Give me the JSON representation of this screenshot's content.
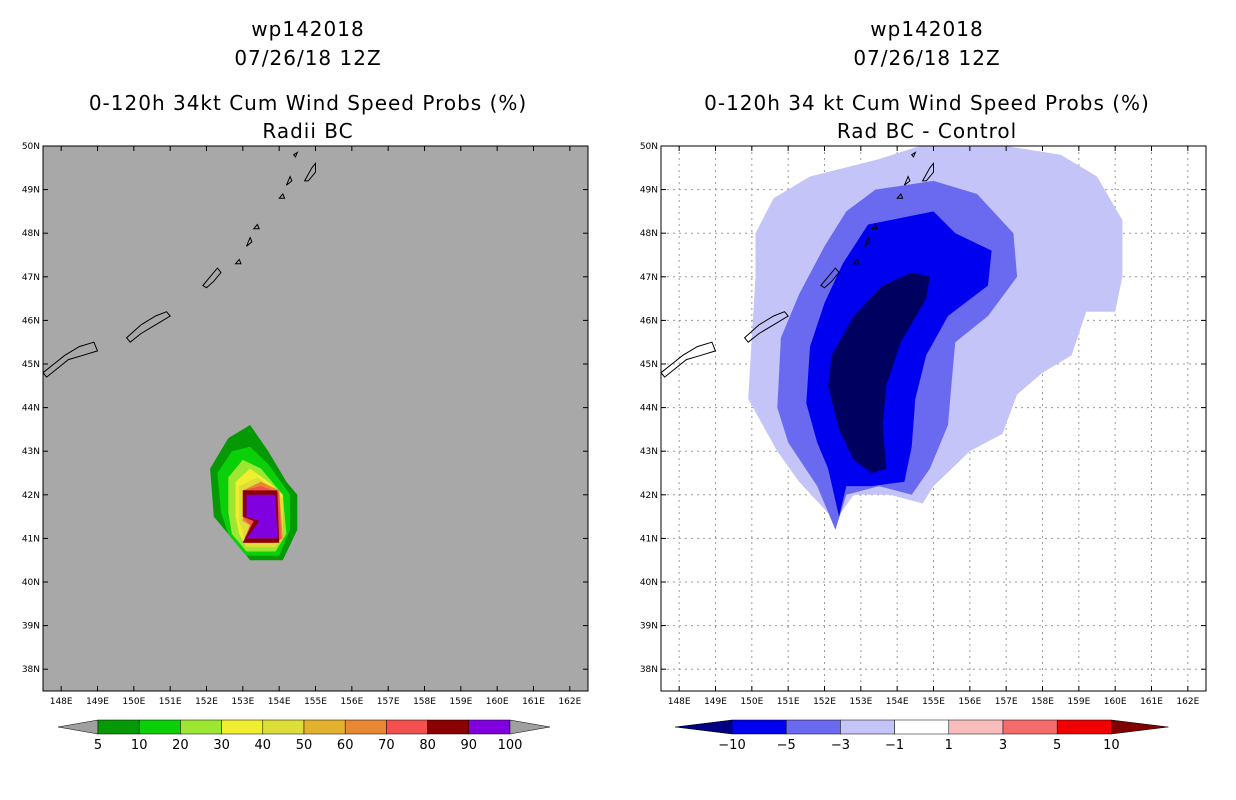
{
  "chart_data": [
    {
      "type": "contour-map",
      "title": [
        "wp142018",
        "07/26/18 12Z",
        "0-120h 34kt Cum Wind Speed Probs (%)",
        "Radii BC"
      ],
      "x_ticks": [
        "148E",
        "149E",
        "150E",
        "151E",
        "152E",
        "153E",
        "154E",
        "155E",
        "156E",
        "157E",
        "158E",
        "159E",
        "160E",
        "161E",
        "162E"
      ],
      "y_ticks": [
        "50N",
        "49N",
        "48N",
        "47N",
        "46N",
        "45N",
        "44N",
        "43N",
        "42N",
        "41N",
        "40N",
        "39N",
        "38N"
      ],
      "xlim": [
        147.5,
        162.5
      ],
      "ylim": [
        37.5,
        50.0
      ],
      "background": "#a8a8a8",
      "legend": {
        "labels": [
          "5",
          "10",
          "20",
          "30",
          "40",
          "50",
          "60",
          "70",
          "80",
          "90",
          "100"
        ],
        "colors": [
          "#059905",
          "#0ad00a",
          "#9de631",
          "#efef30",
          "#dede38",
          "#e2b22c",
          "#e98734",
          "#f35050",
          "#8b0000",
          "#8000e0"
        ],
        "end_color": "#a0a0a0"
      },
      "contours": [
        {
          "level": 5,
          "color": "#059905",
          "points": [
            [
              152.2,
              41.5
            ],
            [
              152.1,
              42.6
            ],
            [
              152.6,
              43.3
            ],
            [
              153.2,
              43.6
            ],
            [
              153.7,
              43.0
            ],
            [
              154.2,
              42.3
            ],
            [
              154.5,
              42.0
            ],
            [
              154.5,
              41.2
            ],
            [
              154.1,
              40.5
            ],
            [
              153.2,
              40.5
            ],
            [
              152.5,
              41.2
            ]
          ]
        },
        {
          "level": 10,
          "color": "#0ad00a",
          "points": [
            [
              152.4,
              41.6
            ],
            [
              152.3,
              42.5
            ],
            [
              152.7,
              43.0
            ],
            [
              153.2,
              43.1
            ],
            [
              153.7,
              42.7
            ],
            [
              154.3,
              42.0
            ],
            [
              154.3,
              41.2
            ],
            [
              154.0,
              40.6
            ],
            [
              153.1,
              40.6
            ],
            [
              152.6,
              41.1
            ]
          ]
        },
        {
          "level": 20,
          "color": "#9de631",
          "points": [
            [
              152.6,
              41.6
            ],
            [
              152.6,
              42.4
            ],
            [
              153.0,
              42.8
            ],
            [
              153.5,
              42.6
            ],
            [
              154.1,
              42.0
            ],
            [
              154.2,
              41.1
            ],
            [
              153.9,
              40.7
            ],
            [
              153.1,
              40.7
            ],
            [
              152.7,
              41.1
            ]
          ]
        },
        {
          "level": 30,
          "color": "#efef30",
          "points": [
            [
              152.8,
              41.5
            ],
            [
              152.8,
              42.3
            ],
            [
              153.2,
              42.6
            ],
            [
              153.7,
              42.3
            ],
            [
              154.1,
              42.0
            ],
            [
              154.1,
              41.1
            ],
            [
              153.8,
              40.8
            ],
            [
              153.1,
              40.8
            ],
            [
              152.9,
              41.1
            ]
          ]
        },
        {
          "level": 40,
          "color": "#dede38",
          "points": [
            [
              152.9,
              41.4
            ],
            [
              152.9,
              42.2
            ],
            [
              153.4,
              42.4
            ],
            [
              153.9,
              42.1
            ],
            [
              154.1,
              41.9
            ],
            [
              154.1,
              41.0
            ],
            [
              153.9,
              40.8
            ],
            [
              153.1,
              40.8
            ]
          ]
        },
        {
          "level": 60,
          "color": "#e98734",
          "points": [
            [
              153.0,
              41.4
            ],
            [
              153.0,
              42.1
            ],
            [
              153.5,
              42.3
            ],
            [
              154.0,
              42.1
            ],
            [
              154.1,
              41.0
            ],
            [
              153.9,
              40.9
            ],
            [
              153.0,
              40.9
            ],
            [
              153.2,
              41.3
            ]
          ]
        },
        {
          "level": 70,
          "color": "#f35050",
          "points": [
            [
              153.0,
              41.5
            ],
            [
              153.0,
              42.1
            ],
            [
              153.5,
              42.2
            ],
            [
              154.0,
              42.05
            ],
            [
              154.05,
              41.0
            ],
            [
              153.9,
              40.9
            ],
            [
              153.0,
              40.9
            ],
            [
              153.2,
              41.3
            ]
          ]
        },
        {
          "level": 80,
          "color": "#8b0000",
          "points": [
            [
              153.0,
              41.5
            ],
            [
              153.0,
              42.1
            ],
            [
              153.95,
              42.1
            ],
            [
              154.0,
              40.9
            ],
            [
              153.0,
              40.9
            ],
            [
              153.3,
              41.4
            ]
          ]
        },
        {
          "level": 100,
          "color": "#8000e0",
          "points": [
            [
              153.1,
              41.5
            ],
            [
              153.1,
              42.0
            ],
            [
              153.9,
              42.0
            ],
            [
              153.95,
              41.0
            ],
            [
              153.1,
              41.0
            ],
            [
              153.45,
              41.4
            ]
          ]
        }
      ]
    },
    {
      "type": "contour-map",
      "title": [
        "wp142018",
        "07/26/18 12Z",
        "0-120h 34 kt Cum Wind Speed Probs (%)",
        "Rad BC - Control"
      ],
      "x_ticks": [
        "148E",
        "149E",
        "150E",
        "151E",
        "152E",
        "153E",
        "154E",
        "155E",
        "156E",
        "157E",
        "158E",
        "159E",
        "160E",
        "161E",
        "162E"
      ],
      "y_ticks": [
        "50N",
        "49N",
        "48N",
        "47N",
        "46N",
        "45N",
        "44N",
        "43N",
        "42N",
        "41N",
        "40N",
        "39N",
        "38N"
      ],
      "xlim": [
        147.5,
        162.5
      ],
      "ylim": [
        37.5,
        50.0
      ],
      "background": "#ffffff",
      "legend": {
        "labels": [
          "-10",
          "-5",
          "-3",
          "-1",
          "1",
          "3",
          "5",
          "10"
        ],
        "colors": [
          "#0000f0",
          "#6a6af0",
          "#c4c4f8",
          "#ffffff",
          "#f8bcbc",
          "#f56a6a",
          "#f00000"
        ],
        "start_color": "#000080",
        "end_color": "#800000"
      },
      "contours": [
        {
          "level": -1,
          "color": "#c4c4f8",
          "points": [
            [
              149.9,
              44.2
            ],
            [
              150.0,
              45.6
            ],
            [
              150.1,
              47.0
            ],
            [
              150.1,
              48.0
            ],
            [
              150.6,
              48.8
            ],
            [
              151.6,
              49.3
            ],
            [
              153.5,
              49.7
            ],
            [
              155.0,
              50.1
            ],
            [
              157.0,
              50.0
            ],
            [
              158.5,
              49.8
            ],
            [
              159.5,
              49.3
            ],
            [
              160.2,
              48.3
            ],
            [
              160.2,
              47.0
            ],
            [
              160.0,
              46.2
            ],
            [
              159.2,
              46.2
            ],
            [
              158.8,
              45.2
            ],
            [
              158.0,
              44.8
            ],
            [
              157.3,
              44.3
            ],
            [
              156.9,
              43.4
            ],
            [
              156.0,
              43.0
            ],
            [
              155.0,
              42.2
            ],
            [
              154.7,
              41.8
            ],
            [
              153.8,
              42.0
            ],
            [
              152.8,
              42.0
            ],
            [
              152.3,
              41.4
            ],
            [
              151.3,
              42.3
            ],
            [
              150.7,
              43.0
            ]
          ]
        },
        {
          "level": -3,
          "color": "#6a6af0",
          "points": [
            [
              150.7,
              44.0
            ],
            [
              150.8,
              45.6
            ],
            [
              151.3,
              46.6
            ],
            [
              152.0,
              47.7
            ],
            [
              152.6,
              48.5
            ],
            [
              153.4,
              49.0
            ],
            [
              155.0,
              49.2
            ],
            [
              156.2,
              48.9
            ],
            [
              157.2,
              48.0
            ],
            [
              157.3,
              47.0
            ],
            [
              156.5,
              46.1
            ],
            [
              155.6,
              45.5
            ],
            [
              155.5,
              44.6
            ],
            [
              155.4,
              43.6
            ],
            [
              154.9,
              42.6
            ],
            [
              154.4,
              42.0
            ],
            [
              153.5,
              42.2
            ],
            [
              152.6,
              42.0
            ],
            [
              152.3,
              41.2
            ],
            [
              151.8,
              42.2
            ],
            [
              151.0,
              43.2
            ]
          ]
        },
        {
          "level": -5,
          "color": "#0000f0",
          "points": [
            [
              151.5,
              44.1
            ],
            [
              151.6,
              45.4
            ],
            [
              152.0,
              46.4
            ],
            [
              152.5,
              47.3
            ],
            [
              153.2,
              48.2
            ],
            [
              155.0,
              48.5
            ],
            [
              155.6,
              48.0
            ],
            [
              156.6,
              47.6
            ],
            [
              156.5,
              46.8
            ],
            [
              155.4,
              46.1
            ],
            [
              154.8,
              45.2
            ],
            [
              154.5,
              44.2
            ],
            [
              154.4,
              43.1
            ],
            [
              154.2,
              42.3
            ],
            [
              153.3,
              42.2
            ],
            [
              152.6,
              42.2
            ],
            [
              152.4,
              41.5
            ],
            [
              152.1,
              42.6
            ],
            [
              151.8,
              43.2
            ]
          ]
        },
        {
          "level": -10,
          "color": "#000060",
          "points": [
            [
              152.1,
              44.5
            ],
            [
              152.2,
              45.2
            ],
            [
              152.8,
              46.1
            ],
            [
              153.6,
              46.8
            ],
            [
              154.4,
              47.1
            ],
            [
              154.9,
              47.0
            ],
            [
              154.8,
              46.5
            ],
            [
              154.1,
              45.5
            ],
            [
              153.7,
              44.5
            ],
            [
              153.6,
              43.6
            ],
            [
              153.7,
              42.6
            ],
            [
              153.3,
              42.5
            ],
            [
              152.8,
              42.8
            ],
            [
              152.4,
              43.5
            ]
          ]
        }
      ]
    }
  ]
}
